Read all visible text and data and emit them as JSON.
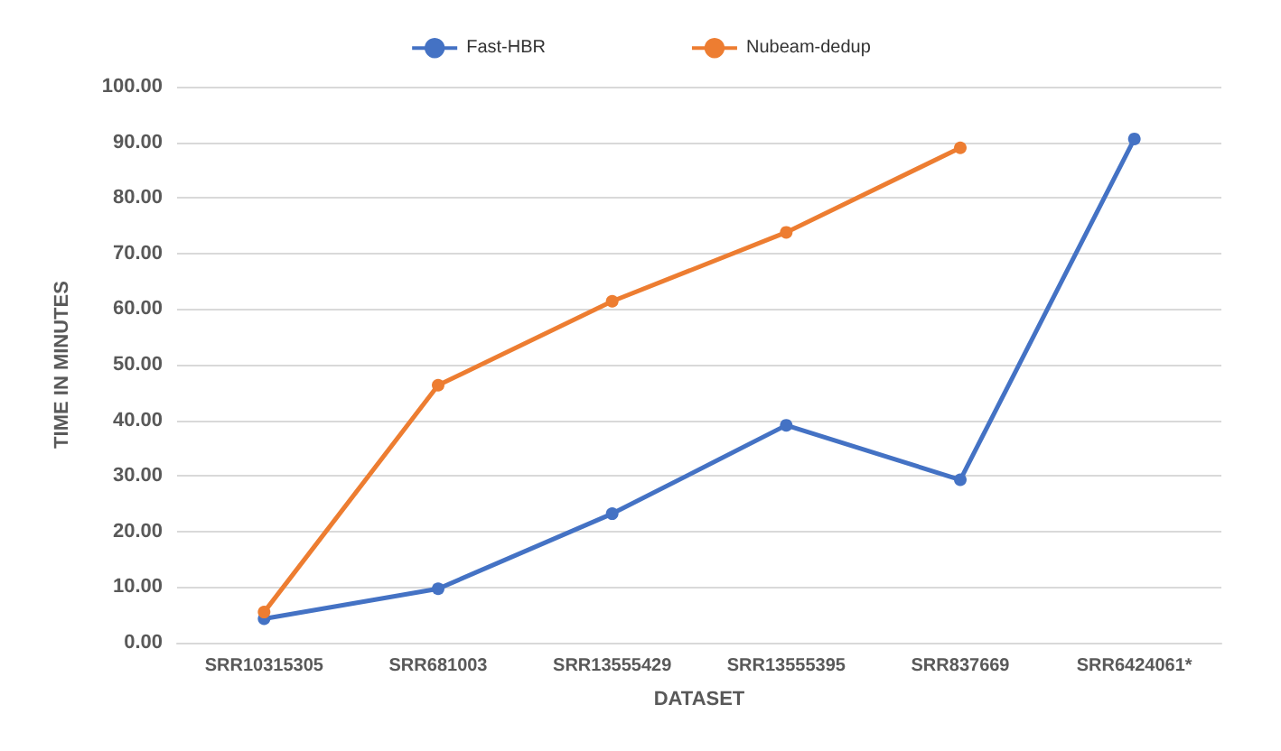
{
  "chart_data": {
    "type": "line",
    "xlabel": "DATASET",
    "ylabel": "TIME IN MINUTES",
    "categories": [
      "SRR10315305",
      "SRR681003",
      "SRR13555429",
      "SRR13555395",
      "SRR837669",
      "SRR6424061*"
    ],
    "series": [
      {
        "name": "Fast-HBR",
        "color": "#4472c4",
        "values": [
          4.3,
          9.7,
          23.2,
          39.1,
          29.3,
          90.6
        ]
      },
      {
        "name": "Nubeam-dedup",
        "color": "#ed7d31",
        "values": [
          5.5,
          46.3,
          61.4,
          73.8,
          89.0,
          null
        ]
      }
    ],
    "ylim": [
      0,
      100
    ],
    "yticks": [
      {
        "value": 0,
        "label": "0.00"
      },
      {
        "value": 10,
        "label": "10.00"
      },
      {
        "value": 20,
        "label": "20.00"
      },
      {
        "value": 30,
        "label": "30.00"
      },
      {
        "value": 40,
        "label": "40.00"
      },
      {
        "value": 50,
        "label": "50.00"
      },
      {
        "value": 60,
        "label": "60.00"
      },
      {
        "value": 70,
        "label": "70.00"
      },
      {
        "value": 80,
        "label": "80.00"
      },
      {
        "value": 90,
        "label": "90.00"
      },
      {
        "value": 100,
        "label": "100.00"
      }
    ],
    "grid": "y",
    "legend": "top",
    "marker": "circle",
    "line_style": "solid"
  }
}
